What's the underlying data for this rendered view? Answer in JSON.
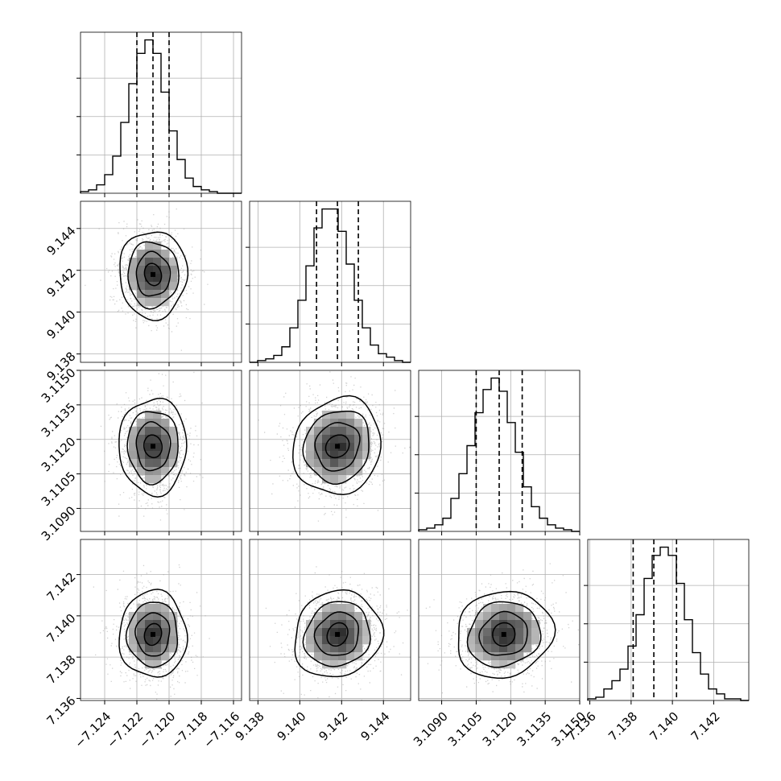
{
  "chart_data": {
    "type": "corner",
    "parameters": [
      {
        "index": 0,
        "range": [
          -7.1255,
          -7.1155
        ],
        "ticks": [
          -7.124,
          -7.122,
          -7.12,
          -7.118,
          -7.116
        ],
        "tick_labels": [
          "−7.124",
          "−7.122",
          "−7.120",
          "−7.118",
          "−7.116"
        ],
        "quantiles": [
          -7.122,
          -7.121,
          -7.12
        ],
        "hist_counts": [
          1,
          2,
          5,
          11,
          22,
          42,
          65,
          83,
          91,
          83,
          60,
          37,
          20,
          9,
          4,
          2,
          1,
          0,
          0,
          0
        ]
      },
      {
        "index": 1,
        "range": [
          9.1376,
          9.1453
        ],
        "ticks": [
          9.138,
          9.14,
          9.142,
          9.144
        ],
        "tick_labels": [
          "9.138",
          "9.140",
          "9.142",
          "9.144"
        ],
        "quantiles": [
          9.1408,
          9.1418,
          9.1428
        ],
        "hist_counts": [
          0,
          1,
          2,
          4,
          9,
          20,
          36,
          56,
          78,
          89,
          89,
          76,
          57,
          36,
          20,
          10,
          5,
          3,
          1,
          0
        ]
      },
      {
        "index": 2,
        "range": [
          3.108,
          3.115
        ],
        "ticks": [
          3.109,
          3.1105,
          3.112,
          3.1135,
          3.115
        ],
        "tick_labels": [
          "3.1090",
          "3.1105",
          "3.1120",
          "3.1135",
          "3.1150"
        ],
        "quantiles": [
          3.1105,
          3.1115,
          3.1125
        ],
        "hist_counts": [
          1,
          2,
          4,
          8,
          20,
          35,
          52,
          72,
          86,
          93,
          85,
          66,
          48,
          27,
          15,
          8,
          4,
          2,
          1,
          0
        ]
      },
      {
        "index": 3,
        "range": [
          7.1359,
          7.1437
        ],
        "ticks": [
          7.136,
          7.138,
          7.14,
          7.142
        ],
        "tick_labels": [
          "7.136",
          "7.138",
          "7.140",
          "7.142"
        ],
        "quantiles": [
          7.1381,
          7.1391,
          7.1402
        ],
        "hist_counts": [
          1,
          2,
          7,
          12,
          19,
          33,
          52,
          74,
          88,
          93,
          88,
          71,
          49,
          29,
          16,
          7,
          4,
          1,
          1,
          0
        ]
      }
    ],
    "pairs": [
      {
        "row": 1,
        "col": 0,
        "center": [
          -7.121,
          9.1418
        ],
        "sigma": [
          0.001,
          0.001
        ],
        "rho": 0.0
      },
      {
        "row": 2,
        "col": 0,
        "center": [
          -7.121,
          3.1117
        ],
        "sigma": [
          0.001,
          0.001
        ],
        "rho": 0.0
      },
      {
        "row": 2,
        "col": 1,
        "center": [
          9.1418,
          3.1117
        ],
        "sigma": [
          0.001,
          0.001
        ],
        "rho": -0.1
      },
      {
        "row": 3,
        "col": 0,
        "center": [
          -7.121,
          7.1391
        ],
        "sigma": [
          0.001,
          0.001
        ],
        "rho": 0.0
      },
      {
        "row": 3,
        "col": 1,
        "center": [
          9.1418,
          7.1391
        ],
        "sigma": [
          0.001,
          0.001
        ],
        "rho": -0.1
      },
      {
        "row": 3,
        "col": 2,
        "center": [
          3.1117,
          7.1391
        ],
        "sigma": [
          0.001,
          0.001
        ],
        "rho": -0.1
      }
    ],
    "contour_levels_sigma": [
      0.5,
      1.0,
      1.5,
      2.0
    ],
    "grid": true,
    "colors": {
      "line": "#000000",
      "grid": "#b0b0b0",
      "scatter": "#9a9a9a"
    }
  }
}
